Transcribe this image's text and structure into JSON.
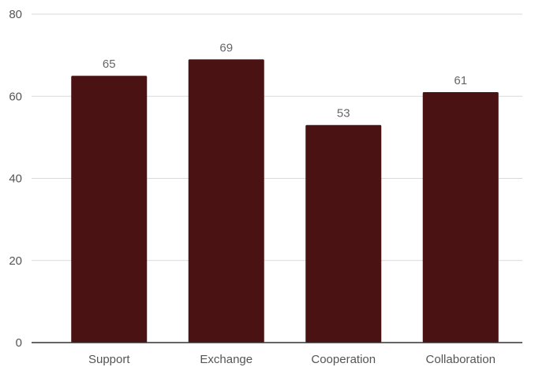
{
  "chart_data": {
    "type": "bar",
    "categories": [
      "Support",
      "Exchange",
      "Cooperation",
      "Collaboration"
    ],
    "values": [
      65,
      69,
      53,
      61
    ],
    "title": "",
    "xlabel": "",
    "ylabel": "",
    "ylim": [
      0,
      80
    ],
    "yticks": [
      0,
      20,
      40,
      60,
      80
    ],
    "ytick_labels": [
      "0",
      "20",
      "40",
      "60",
      "80"
    ],
    "data_labels": [
      "65",
      "69",
      "53",
      "61"
    ],
    "grid": true,
    "legend": "none",
    "colors": {
      "bar": "#4a1212",
      "grid": "#d9d9d9",
      "axis": "#333333"
    }
  }
}
